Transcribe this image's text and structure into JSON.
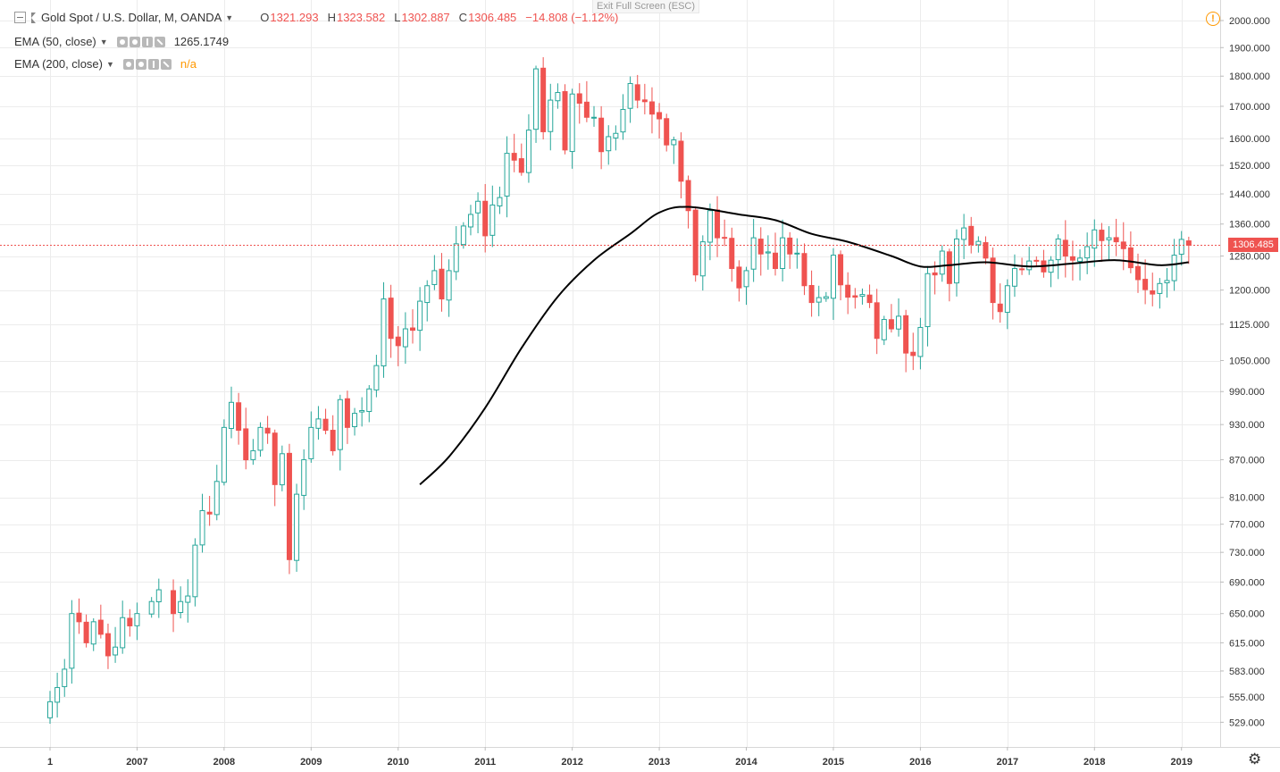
{
  "header": {
    "symbol_title": "Gold Spot / U.S. Dollar, M, OANDA",
    "open_label": "O",
    "open": "1321.293",
    "high_label": "H",
    "high": "1323.582",
    "low_label": "L",
    "low": "1302.887",
    "close_label": "C",
    "close": "1306.485",
    "change": "−14.808 (−1.12%)"
  },
  "indicators": [
    {
      "name": "EMA (50, close)",
      "value": "1265.1749"
    },
    {
      "name": "EMA (200, close)",
      "value": "n/a"
    }
  ],
  "exit_fullscreen": "Exit Full Screen (ESC)",
  "last_price_tag": "1306.485",
  "colors": {
    "up": "#26a69a",
    "down": "#ef5350",
    "ema": "#000000",
    "grid": "#ececec",
    "last_line": "#ef5350"
  },
  "icons": [
    "minimize-icon",
    "flag-icon",
    "chevron-down-icon",
    "visibility-icon",
    "settings-icon",
    "plus-icon",
    "close-icon",
    "warning-icon",
    "gear-icon"
  ],
  "chart_data": {
    "type": "candlestick",
    "interval": "monthly",
    "scale": "log",
    "ylim": [
      510,
      2030
    ],
    "y_ticks": [
      529,
      555,
      583,
      615,
      650,
      690,
      730,
      770,
      810,
      870,
      930,
      990,
      1050,
      1125,
      1200,
      1280,
      1360,
      1440,
      1520,
      1600,
      1700,
      1800,
      1900,
      2000
    ],
    "y_tick_labels": [
      "529.000",
      "555.000",
      "583.000",
      "615.000",
      "650.000",
      "690.000",
      "730.000",
      "770.000",
      "810.000",
      "870.000",
      "930.000",
      "990.000",
      "1050.000",
      "1125.000",
      "1200.000",
      "1280.000",
      "1360.000",
      "1440.000",
      "1520.000",
      "1600.000",
      "1700.000",
      "1800.000",
      "1900.000",
      "2000.000"
    ],
    "x_ticks": [
      "1",
      "2007",
      "2008",
      "2009",
      "2010",
      "2011",
      "2012",
      "2013",
      "2014",
      "2015",
      "2016",
      "2017",
      "2018",
      "2019"
    ],
    "last_price": 1306.485,
    "anchors": [
      [
        "2006-01",
        550
      ],
      [
        "2006-02",
        565
      ],
      [
        "2006-03",
        585
      ],
      [
        "2006-04",
        650
      ],
      [
        "2006-05",
        640
      ],
      [
        "2006-06",
        615
      ],
      [
        "2006-07",
        640
      ],
      [
        "2006-08",
        625
      ],
      [
        "2006-09",
        600
      ],
      [
        "2006-10",
        610
      ],
      [
        "2006-11",
        645
      ],
      [
        "2006-12",
        635
      ],
      [
        "2007-01",
        650
      ],
      [
        "2007-03",
        665
      ],
      [
        "2007-04",
        680
      ],
      [
        "2007-06",
        650
      ],
      [
        "2007-07",
        665
      ],
      [
        "2007-08",
        672
      ],
      [
        "2007-09",
        740
      ],
      [
        "2007-10",
        790
      ],
      [
        "2007-11",
        785
      ],
      [
        "2007-12",
        835
      ],
      [
        "2008-01",
        925
      ],
      [
        "2008-02",
        970
      ],
      [
        "2008-03",
        920
      ],
      [
        "2008-04",
        870
      ],
      [
        "2008-05",
        885
      ],
      [
        "2008-06",
        925
      ],
      [
        "2008-07",
        915
      ],
      [
        "2008-08",
        830
      ],
      [
        "2008-09",
        880
      ],
      [
        "2008-10",
        720
      ],
      [
        "2008-11",
        815
      ],
      [
        "2008-12",
        870
      ],
      [
        "2009-01",
        925
      ],
      [
        "2009-02",
        940
      ],
      [
        "2009-03",
        920
      ],
      [
        "2009-04",
        885
      ],
      [
        "2009-05",
        975
      ],
      [
        "2009-06",
        925
      ],
      [
        "2009-07",
        950
      ],
      [
        "2009-08",
        955
      ],
      [
        "2009-09",
        995
      ],
      [
        "2009-10",
        1040
      ],
      [
        "2009-11",
        1180
      ],
      [
        "2009-12",
        1095
      ],
      [
        "2010-01",
        1080
      ],
      [
        "2010-02",
        1115
      ],
      [
        "2010-03",
        1112
      ],
      [
        "2010-04",
        1175
      ],
      [
        "2010-05",
        1210
      ],
      [
        "2010-06",
        1245
      ],
      [
        "2010-07",
        1180
      ],
      [
        "2010-08",
        1245
      ],
      [
        "2010-09",
        1310
      ],
      [
        "2010-10",
        1355
      ],
      [
        "2010-11",
        1385
      ],
      [
        "2010-12",
        1420
      ],
      [
        "2011-01",
        1330
      ],
      [
        "2011-02",
        1410
      ],
      [
        "2011-03",
        1430
      ],
      [
        "2011-04",
        1555
      ],
      [
        "2011-05",
        1535
      ],
      [
        "2011-06",
        1500
      ],
      [
        "2011-07",
        1625
      ],
      [
        "2011-08",
        1825
      ],
      [
        "2011-09",
        1620
      ],
      [
        "2011-10",
        1720
      ],
      [
        "2011-11",
        1745
      ],
      [
        "2011-12",
        1565
      ],
      [
        "2012-01",
        1740
      ],
      [
        "2012-02",
        1710
      ],
      [
        "2012-03",
        1665
      ],
      [
        "2012-04",
        1665
      ],
      [
        "2012-05",
        1560
      ],
      [
        "2012-06",
        1605
      ],
      [
        "2012-07",
        1615
      ],
      [
        "2012-08",
        1690
      ],
      [
        "2012-09",
        1775
      ],
      [
        "2012-10",
        1720
      ],
      [
        "2012-11",
        1715
      ],
      [
        "2012-12",
        1675
      ],
      [
        "2013-01",
        1660
      ],
      [
        "2013-02",
        1580
      ],
      [
        "2013-03",
        1595
      ],
      [
        "2013-04",
        1475
      ],
      [
        "2013-05",
        1395
      ],
      [
        "2013-06",
        1235
      ],
      [
        "2013-07",
        1315
      ],
      [
        "2013-08",
        1395
      ],
      [
        "2013-09",
        1325
      ],
      [
        "2013-10",
        1325
      ],
      [
        "2013-11",
        1250
      ],
      [
        "2013-12",
        1205
      ],
      [
        "2014-01",
        1245
      ],
      [
        "2014-02",
        1325
      ],
      [
        "2014-03",
        1285
      ],
      [
        "2014-04",
        1290
      ],
      [
        "2014-05",
        1250
      ],
      [
        "2014-06",
        1325
      ],
      [
        "2014-07",
        1285
      ],
      [
        "2014-08",
        1287
      ],
      [
        "2014-09",
        1210
      ],
      [
        "2014-10",
        1172
      ],
      [
        "2014-11",
        1183
      ],
      [
        "2014-12",
        1185
      ],
      [
        "2015-01",
        1282
      ],
      [
        "2015-02",
        1212
      ],
      [
        "2015-03",
        1184
      ],
      [
        "2015-04",
        1184
      ],
      [
        "2015-05",
        1190
      ],
      [
        "2015-06",
        1172
      ],
      [
        "2015-07",
        1095
      ],
      [
        "2015-08",
        1135
      ],
      [
        "2015-09",
        1115
      ],
      [
        "2015-10",
        1142
      ],
      [
        "2015-11",
        1065
      ],
      [
        "2015-12",
        1060
      ],
      [
        "2016-01",
        1118
      ],
      [
        "2016-02",
        1238
      ],
      [
        "2016-03",
        1235
      ],
      [
        "2016-04",
        1292
      ],
      [
        "2016-05",
        1215
      ],
      [
        "2016-06",
        1322
      ],
      [
        "2016-07",
        1350
      ],
      [
        "2016-08",
        1308
      ],
      [
        "2016-09",
        1316
      ],
      [
        "2016-10",
        1275
      ],
      [
        "2016-11",
        1172
      ],
      [
        "2016-12",
        1152
      ],
      [
        "2017-01",
        1210
      ],
      [
        "2017-02",
        1250
      ],
      [
        "2017-03",
        1248
      ],
      [
        "2017-04",
        1268
      ],
      [
        "2017-05",
        1268
      ],
      [
        "2017-06",
        1242
      ],
      [
        "2017-07",
        1270
      ],
      [
        "2017-08",
        1322
      ],
      [
        "2017-09",
        1280
      ],
      [
        "2017-10",
        1270
      ],
      [
        "2017-11",
        1275
      ],
      [
        "2017-12",
        1303
      ],
      [
        "2018-01",
        1345
      ],
      [
        "2018-02",
        1318
      ],
      [
        "2018-03",
        1325
      ],
      [
        "2018-04",
        1315
      ],
      [
        "2018-05",
        1298
      ],
      [
        "2018-06",
        1252
      ],
      [
        "2018-07",
        1224
      ],
      [
        "2018-08",
        1201
      ],
      [
        "2018-09",
        1191
      ],
      [
        "2018-10",
        1215
      ],
      [
        "2018-11",
        1222
      ],
      [
        "2018-12",
        1282
      ],
      [
        "2019-01",
        1321
      ],
      [
        "2019-02",
        1306.485
      ]
    ],
    "ema50": [
      [
        "2010-04",
        830
      ],
      [
        "2010-08",
        875
      ],
      [
        "2011-01",
        960
      ],
      [
        "2011-06",
        1075
      ],
      [
        "2011-11",
        1185
      ],
      [
        "2012-04",
        1270
      ],
      [
        "2012-09",
        1335
      ],
      [
        "2013-01",
        1390
      ],
      [
        "2013-05",
        1405
      ],
      [
        "2013-12",
        1385
      ],
      [
        "2014-05",
        1370
      ],
      [
        "2014-10",
        1335
      ],
      [
        "2015-03",
        1315
      ],
      [
        "2015-09",
        1280
      ],
      [
        "2016-01",
        1255
      ],
      [
        "2016-05",
        1258
      ],
      [
        "2016-10",
        1265
      ],
      [
        "2017-04",
        1255
      ],
      [
        "2017-10",
        1262
      ],
      [
        "2018-04",
        1270
      ],
      [
        "2018-10",
        1258
      ],
      [
        "2019-02",
        1265
      ]
    ]
  }
}
